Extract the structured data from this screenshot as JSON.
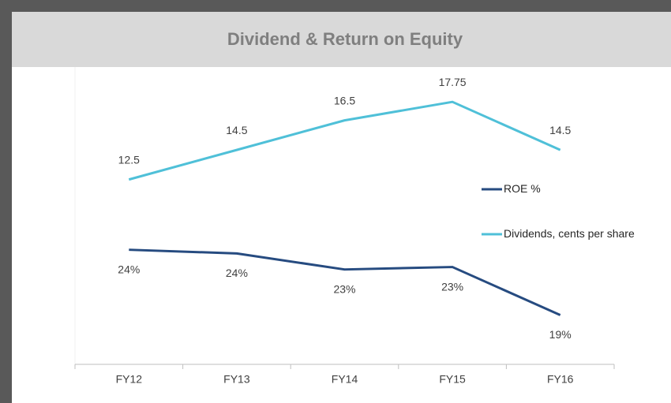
{
  "chart_data": {
    "type": "line",
    "title": "Dividend & Return on Equity",
    "categories": [
      "FY12",
      "FY13",
      "FY14",
      "FY15",
      "FY16"
    ],
    "series": [
      {
        "name": "ROE %",
        "color": "#264b80",
        "axis": "y2",
        "values": [
          24.3,
          24.0,
          22.7,
          22.9,
          19.0
        ],
        "value_labels": [
          "24%",
          "24%",
          "23%",
          "23%",
          "19%"
        ]
      },
      {
        "name": "Dividends, cents per share",
        "color": "#4fc0d8",
        "values": [
          12.5,
          14.5,
          16.5,
          17.75,
          14.5
        ]
      }
    ],
    "ylim": [
      0,
      20
    ],
    "y2lim": [
      15,
      39
    ]
  }
}
